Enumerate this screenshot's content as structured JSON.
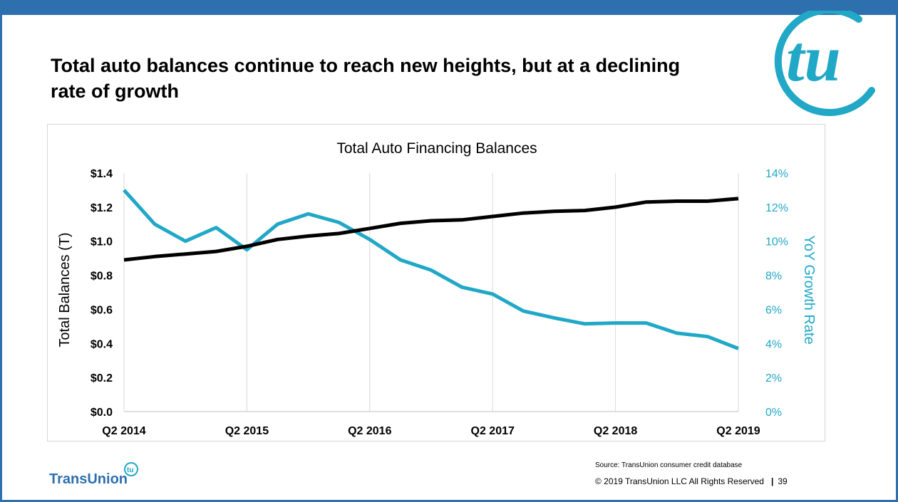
{
  "slide": {
    "title": "Total auto balances continue to reach new heights, but at a declining rate of growth",
    "source": "Source: TransUnion consumer credit database",
    "copyright": "© 2019 TransUnion LLC All Rights Reserved",
    "page_number": "39",
    "brand": "TransUnion",
    "logo_text": "tu",
    "colors": {
      "brand_blue": "#2e6fae",
      "teal": "#21a8c7",
      "black": "#000000"
    }
  },
  "chart_data": {
    "type": "line",
    "title": "Total Auto Financing Balances",
    "ylabel": "Total Balances (T)",
    "y2label": "YoY Growth Rate",
    "x_tick_labels": [
      "Q2 2014",
      "Q2 2015",
      "Q2 2016",
      "Q2 2017",
      "Q2 2018",
      "Q2 2019"
    ],
    "x": [
      "Q2 2014",
      "Q3 2014",
      "Q4 2014",
      "Q1 2015",
      "Q2 2015",
      "Q3 2015",
      "Q4 2015",
      "Q1 2016",
      "Q2 2016",
      "Q3 2016",
      "Q4 2016",
      "Q1 2017",
      "Q2 2017",
      "Q3 2017",
      "Q4 2017",
      "Q1 2018",
      "Q2 2018",
      "Q3 2018",
      "Q4 2018",
      "Q1 2019",
      "Q2 2019"
    ],
    "ylim": [
      0,
      1.4
    ],
    "y_tick_labels": [
      "$0.0",
      "$0.2",
      "$0.4",
      "$0.6",
      "$0.8",
      "$1.0",
      "$1.2",
      "$1.4"
    ],
    "y2lim": [
      0,
      14
    ],
    "y2_tick_labels": [
      "0%",
      "2%",
      "4%",
      "6%",
      "8%",
      "10%",
      "12%",
      "14%"
    ],
    "grid": "vertical",
    "series": [
      {
        "axis": "left",
        "color": "#000000",
        "values": [
          0.89,
          0.91,
          0.925,
          0.94,
          0.97,
          1.01,
          1.03,
          1.045,
          1.075,
          1.105,
          1.12,
          1.125,
          1.145,
          1.165,
          1.175,
          1.18,
          1.2,
          1.23,
          1.235,
          1.235,
          1.25
        ]
      },
      {
        "axis": "right",
        "color": "#21a8c7",
        "values": [
          13.0,
          11.0,
          10.0,
          10.8,
          9.5,
          11.0,
          11.6,
          11.1,
          10.1,
          8.9,
          8.3,
          7.3,
          6.9,
          5.9,
          5.5,
          5.15,
          5.2,
          5.2,
          4.6,
          4.4,
          3.7
        ]
      }
    ]
  }
}
